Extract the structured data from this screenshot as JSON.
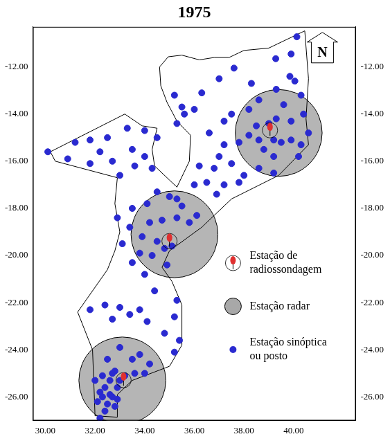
{
  "chart_data": {
    "type": "scatter",
    "title": "1975",
    "north_label": "N",
    "grid": false,
    "xlim": [
      29.5,
      42.5
    ],
    "xticks": [
      {
        "value": 30,
        "label": "30.00"
      },
      {
        "value": 32,
        "label": "32.00"
      },
      {
        "value": 34,
        "label": "34.00"
      },
      {
        "value": 36,
        "label": "36.00"
      },
      {
        "value": 38,
        "label": "38.00"
      },
      {
        "value": 40,
        "label": "40.00"
      }
    ],
    "ylim": [
      -27,
      -10.3
    ],
    "yticks": [
      {
        "value": -12,
        "label": "-12.00"
      },
      {
        "value": -14,
        "label": "-14.00"
      },
      {
        "value": -16,
        "label": "-16.00"
      },
      {
        "value": -18,
        "label": "-18.00"
      },
      {
        "value": -20,
        "label": "-20.00"
      },
      {
        "value": -22,
        "label": "-22.00"
      },
      {
        "value": -24,
        "label": "-24.00"
      },
      {
        "value": -26,
        "label": "-26.00"
      }
    ],
    "y2lim": [
      -27,
      -10.3
    ],
    "y2ticks": [
      {
        "value": -12,
        "label": "-12.00"
      },
      {
        "value": -14,
        "label": "-14.00"
      },
      {
        "value": -16,
        "label": "-16.00"
      },
      {
        "value": -18,
        "label": "-18.00"
      },
      {
        "value": -20,
        "label": "-20.00"
      },
      {
        "value": -22,
        "label": "-22.00"
      },
      {
        "value": -24,
        "label": "-24.00"
      },
      {
        "value": -26,
        "label": "-26.00"
      }
    ],
    "outline": [
      [
        40.45,
        -10.47
      ],
      [
        39.0,
        -11.2
      ],
      [
        38.0,
        -11.3
      ],
      [
        37.4,
        -11.6
      ],
      [
        36.8,
        -11.6
      ],
      [
        36.2,
        -11.7
      ],
      [
        35.5,
        -11.5
      ],
      [
        34.95,
        -11.57
      ],
      [
        34.6,
        -12.0
      ],
      [
        34.65,
        -12.8
      ],
      [
        34.9,
        -13.5
      ],
      [
        35.3,
        -14.3
      ],
      [
        35.85,
        -14.9
      ],
      [
        35.8,
        -16.0
      ],
      [
        35.3,
        -17.1
      ],
      [
        35.0,
        -16.8
      ],
      [
        34.4,
        -16.2
      ],
      [
        34.3,
        -15.5
      ],
      [
        34.5,
        -14.6
      ],
      [
        33.9,
        -14.5
      ],
      [
        33.2,
        -14.0
      ],
      [
        30.2,
        -15.6
      ],
      [
        30.4,
        -16.0
      ],
      [
        32.9,
        -16.7
      ],
      [
        32.8,
        -17.8
      ],
      [
        33.0,
        -19.0
      ],
      [
        32.8,
        -19.8
      ],
      [
        32.5,
        -20.6
      ],
      [
        31.3,
        -22.4
      ],
      [
        31.9,
        -24.0
      ],
      [
        31.97,
        -25.9
      ],
      [
        32.0,
        -26.8
      ],
      [
        32.9,
        -26.86
      ],
      [
        32.9,
        -25.9
      ],
      [
        33.5,
        -25.3
      ],
      [
        35.0,
        -24.7
      ],
      [
        35.5,
        -23.8
      ],
      [
        35.5,
        -22.1
      ],
      [
        35.1,
        -21.1
      ],
      [
        34.7,
        -20.5
      ],
      [
        35.0,
        -19.8
      ],
      [
        36.3,
        -18.8
      ],
      [
        37.5,
        -17.6
      ],
      [
        39.4,
        -16.6
      ],
      [
        40.6,
        -15.3
      ],
      [
        40.5,
        -14.2
      ],
      [
        40.6,
        -12.5
      ],
      [
        40.45,
        -10.47
      ]
    ],
    "series": [
      {
        "name": "Estação de\nradiossondagem",
        "color": "#e03030",
        "marker": "balloon",
        "points": [
          [
            39.05,
            -14.6
          ],
          [
            35.0,
            -19.3
          ],
          [
            33.15,
            -25.2
          ]
        ]
      },
      {
        "name": "Estação radar",
        "color": "#a8a8a8",
        "marker": "circle",
        "points": [
          [
            39.4,
            -14.8
          ],
          [
            35.2,
            -19.1
          ],
          [
            33.1,
            -25.3
          ]
        ],
        "radius": [
          1.75,
          1.75,
          1.75
        ]
      },
      {
        "name": "Estação sinóptica\nou posto",
        "color": "#2a2ad0",
        "marker": "dot",
        "points": [
          [
            35.2,
            -13.2
          ],
          [
            35.5,
            -13.7
          ],
          [
            35.6,
            -14.0
          ],
          [
            35.3,
            -14.4
          ],
          [
            36.0,
            -13.8
          ],
          [
            36.3,
            -13.1
          ],
          [
            37.0,
            -12.5
          ],
          [
            37.5,
            -14.0
          ],
          [
            37.2,
            -14.3
          ],
          [
            36.6,
            -14.8
          ],
          [
            38.2,
            -13.8
          ],
          [
            38.6,
            -13.4
          ],
          [
            38.3,
            -12.7
          ],
          [
            37.6,
            -12.05
          ],
          [
            40.13,
            -10.72
          ],
          [
            39.9,
            -11.45
          ],
          [
            39.28,
            -11.65
          ],
          [
            39.85,
            -12.4
          ],
          [
            40.05,
            -12.6
          ],
          [
            39.3,
            -12.95
          ],
          [
            39.6,
            -13.6
          ],
          [
            40.3,
            -13.2
          ],
          [
            38.5,
            -14.5
          ],
          [
            39.0,
            -14.4
          ],
          [
            39.3,
            -14.2
          ],
          [
            39.9,
            -14.3
          ],
          [
            40.4,
            -14.0
          ],
          [
            40.6,
            -14.8
          ],
          [
            40.3,
            -15.3
          ],
          [
            39.9,
            -15.1
          ],
          [
            39.2,
            -15.1
          ],
          [
            39.5,
            -15.2
          ],
          [
            38.8,
            -15.5
          ],
          [
            38.6,
            -15.1
          ],
          [
            39.2,
            -15.8
          ],
          [
            40.2,
            -15.8
          ],
          [
            38.2,
            -14.9
          ],
          [
            37.8,
            -15.2
          ],
          [
            37.2,
            -15.3
          ],
          [
            37.0,
            -15.8
          ],
          [
            36.8,
            -16.3
          ],
          [
            37.5,
            -16.1
          ],
          [
            36.2,
            -16.2
          ],
          [
            36.5,
            -16.9
          ],
          [
            37.2,
            -17.0
          ],
          [
            38.0,
            -16.6
          ],
          [
            38.6,
            -16.3
          ],
          [
            39.2,
            -16.5
          ],
          [
            37.8,
            -16.9
          ],
          [
            36.9,
            -17.4
          ],
          [
            36.0,
            -17.0
          ],
          [
            30.1,
            -15.6
          ],
          [
            31.2,
            -15.2
          ],
          [
            31.8,
            -15.1
          ],
          [
            32.5,
            -15.0
          ],
          [
            33.3,
            -14.6
          ],
          [
            34.0,
            -14.7
          ],
          [
            30.9,
            -15.9
          ],
          [
            31.8,
            -16.1
          ],
          [
            32.7,
            -16.0
          ],
          [
            33.0,
            -16.6
          ],
          [
            33.6,
            -16.2
          ],
          [
            34.0,
            -15.8
          ],
          [
            34.3,
            -16.3
          ],
          [
            33.5,
            -15.5
          ],
          [
            32.2,
            -15.6
          ],
          [
            34.5,
            -15.0
          ],
          [
            34.5,
            -17.3
          ],
          [
            35.0,
            -17.5
          ],
          [
            35.3,
            -17.6
          ],
          [
            34.1,
            -17.8
          ],
          [
            33.5,
            -18.0
          ],
          [
            32.9,
            -18.4
          ],
          [
            33.4,
            -18.8
          ],
          [
            34.2,
            -18.6
          ],
          [
            34.7,
            -18.5
          ],
          [
            35.3,
            -18.4
          ],
          [
            35.8,
            -18.6
          ],
          [
            36.1,
            -18.3
          ],
          [
            33.1,
            -19.5
          ],
          [
            33.9,
            -19.2
          ],
          [
            34.5,
            -19.4
          ],
          [
            34.8,
            -19.7
          ],
          [
            35.1,
            -19.6
          ],
          [
            34.3,
            -20.0
          ],
          [
            33.5,
            -20.3
          ],
          [
            34.0,
            -20.8
          ],
          [
            34.9,
            -20.4
          ],
          [
            34.4,
            -21.5
          ],
          [
            33.8,
            -19.9
          ],
          [
            35.5,
            -17.9
          ],
          [
            31.8,
            -22.3
          ],
          [
            32.4,
            -22.1
          ],
          [
            33.0,
            -22.2
          ],
          [
            32.7,
            -22.7
          ],
          [
            33.4,
            -22.5
          ],
          [
            33.8,
            -22.3
          ],
          [
            34.1,
            -22.8
          ],
          [
            35.3,
            -21.9
          ],
          [
            35.2,
            -22.6
          ],
          [
            34.8,
            -23.3
          ],
          [
            35.4,
            -23.6
          ],
          [
            35.2,
            -24.1
          ],
          [
            33.0,
            -23.9
          ],
          [
            32.5,
            -24.4
          ],
          [
            33.5,
            -24.4
          ],
          [
            34.2,
            -24.6
          ],
          [
            34.0,
            -25.0
          ],
          [
            33.6,
            -25.0
          ],
          [
            33.8,
            -24.2
          ],
          [
            32.8,
            -24.9
          ],
          [
            32.3,
            -25.1
          ],
          [
            32.6,
            -25.3
          ],
          [
            32.4,
            -25.6
          ],
          [
            32.2,
            -25.8
          ],
          [
            32.6,
            -25.9
          ],
          [
            32.9,
            -25.6
          ],
          [
            33.0,
            -25.3
          ],
          [
            32.1,
            -26.2
          ],
          [
            32.5,
            -26.3
          ],
          [
            32.8,
            -26.4
          ],
          [
            32.4,
            -26.6
          ],
          [
            32.2,
            -26.9
          ],
          [
            33.2,
            -25.1
          ],
          [
            32.7,
            -25.0
          ],
          [
            32.0,
            -25.3
          ],
          [
            32.3,
            -26.0
          ],
          [
            32.7,
            -26.0
          ],
          [
            32.9,
            -26.1
          ]
        ]
      }
    ]
  }
}
